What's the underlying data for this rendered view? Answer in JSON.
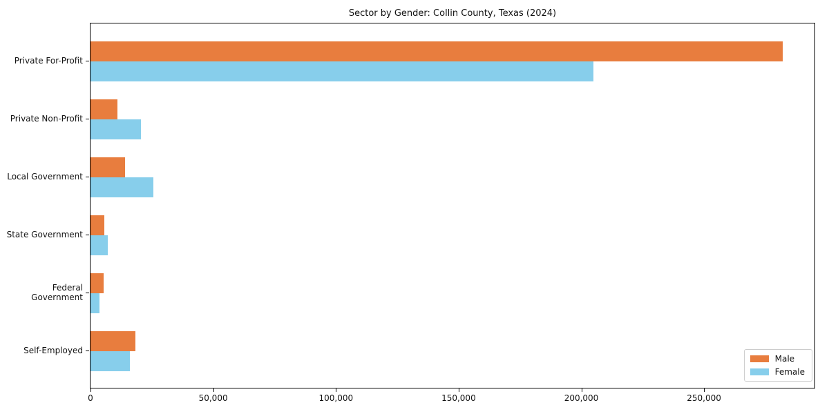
{
  "title": "Sector by Gender: Collin County, Texas (2024)",
  "legend": {
    "position": "lower right",
    "items": [
      {
        "label": "Male",
        "color": "#e87d3e"
      },
      {
        "label": "Female",
        "color": "#87ceeb"
      }
    ]
  },
  "chart_data": {
    "type": "bar",
    "orientation": "horizontal",
    "title": "Sector by Gender: Collin County, Texas (2024)",
    "xlabel": "",
    "ylabel": "",
    "categories": [
      "Private For-Profit",
      "Private Non-Profit",
      "Local Government",
      "State Government",
      "Federal Government",
      "Self-Employed"
    ],
    "series": [
      {
        "name": "Male",
        "color": "#e87d3e",
        "values": [
          282000,
          11000,
          14000,
          5600,
          5400,
          18200
        ]
      },
      {
        "name": "Female",
        "color": "#87ceeb",
        "values": [
          205000,
          20500,
          25500,
          7000,
          3700,
          16000
        ]
      }
    ],
    "xlim": [
      0,
      295000
    ],
    "xticks": [
      {
        "value": 0,
        "label": "0"
      },
      {
        "value": 50000,
        "label": "50,000"
      },
      {
        "value": 100000,
        "label": "100,000"
      },
      {
        "value": 150000,
        "label": "150,000"
      },
      {
        "value": 200000,
        "label": "200,000"
      },
      {
        "value": 250000,
        "label": "250,000"
      }
    ],
    "grid": false,
    "legend_position": "lower right"
  }
}
